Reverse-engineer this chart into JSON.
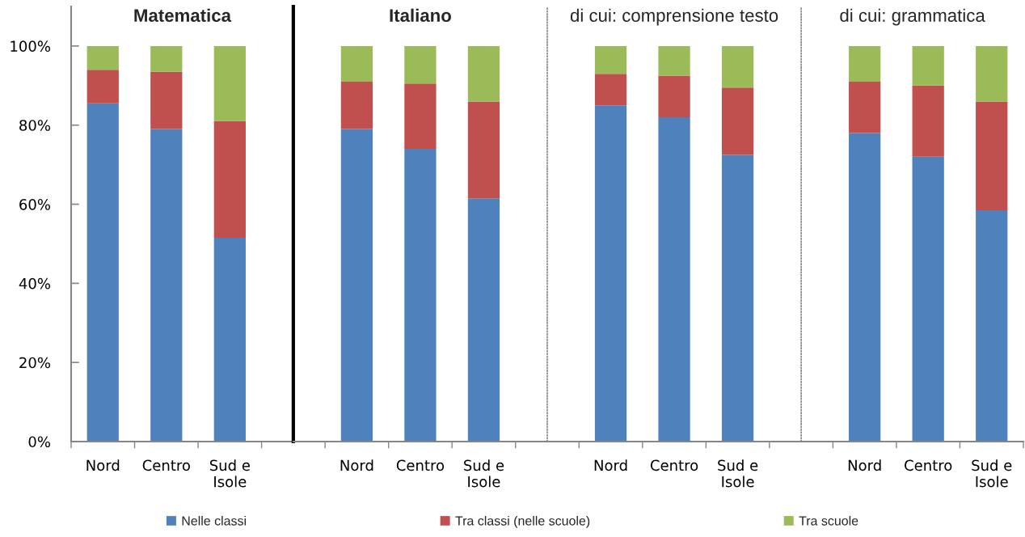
{
  "chart_data": [
    {
      "type": "bar",
      "title": "Matematica",
      "stacked": true,
      "legend": "bottom",
      "categories": [
        "Nord",
        "Centro",
        "Sud e\nIsole"
      ],
      "ylim": [
        0,
        110
      ],
      "yticks": [
        {
          "value": 0,
          "label": "0%"
        },
        {
          "value": 20,
          "label": "20%"
        },
        {
          "value": 40,
          "label": "40%"
        },
        {
          "value": 60,
          "label": "60%"
        },
        {
          "value": 80,
          "label": "80%"
        },
        {
          "value": 100,
          "label": "100%"
        }
      ],
      "series": [
        {
          "name": "Nelle classi",
          "color": "#4f81bd",
          "values": [
            85.5,
            79,
            51.5
          ]
        },
        {
          "name": "Tra classi (nelle scuole)",
          "color": "#c0504d",
          "values": [
            8.5,
            14.5,
            29.5
          ]
        },
        {
          "name": "Tra scuole",
          "color": "#9bbb59",
          "values": [
            6,
            6.5,
            19
          ]
        }
      ]
    },
    {
      "type": "bar",
      "title": "Italiano",
      "stacked": true,
      "tick_labels": "x",
      "categories": [
        "Nord",
        "Centro",
        "Sud e\nIsole"
      ],
      "ylim": [
        0,
        110
      ],
      "series": [
        {
          "color": "#4f81bd",
          "values": [
            79,
            74,
            61.5
          ]
        },
        {
          "color": "#c0504d",
          "values": [
            12,
            16.5,
            24.5
          ]
        },
        {
          "color": "#9bbb59",
          "values": [
            9,
            9.5,
            14
          ]
        }
      ]
    },
    {
      "type": "bar",
      "title": "di cui: comprensione testo",
      "stacked": true,
      "tick_labels": "x",
      "categories": [
        "Nord",
        "Centro",
        "Sud e\nIsole"
      ],
      "ylim": [
        0,
        110
      ],
      "series": [
        {
          "color": "#4f81bd",
          "values": [
            85,
            82,
            72.5
          ]
        },
        {
          "color": "#c0504d",
          "values": [
            8,
            10.5,
            17
          ]
        },
        {
          "color": "#9bbb59",
          "values": [
            7,
            7.5,
            10.5
          ]
        }
      ]
    },
    {
      "type": "bar",
      "title": "di cui: grammatica",
      "stacked": true,
      "tick_labels": "x",
      "categories": [
        "Nord",
        "Centro",
        "Sud e\nIsole"
      ],
      "ylim": [
        0,
        110
      ],
      "series": [
        {
          "color": "#4f81bd",
          "values": [
            78,
            72,
            58.5
          ]
        },
        {
          "color": "#c0504d",
          "values": [
            13,
            18,
            27.5
          ]
        },
        {
          "color": "#9bbb59",
          "values": [
            9,
            10,
            14
          ]
        }
      ]
    }
  ]
}
